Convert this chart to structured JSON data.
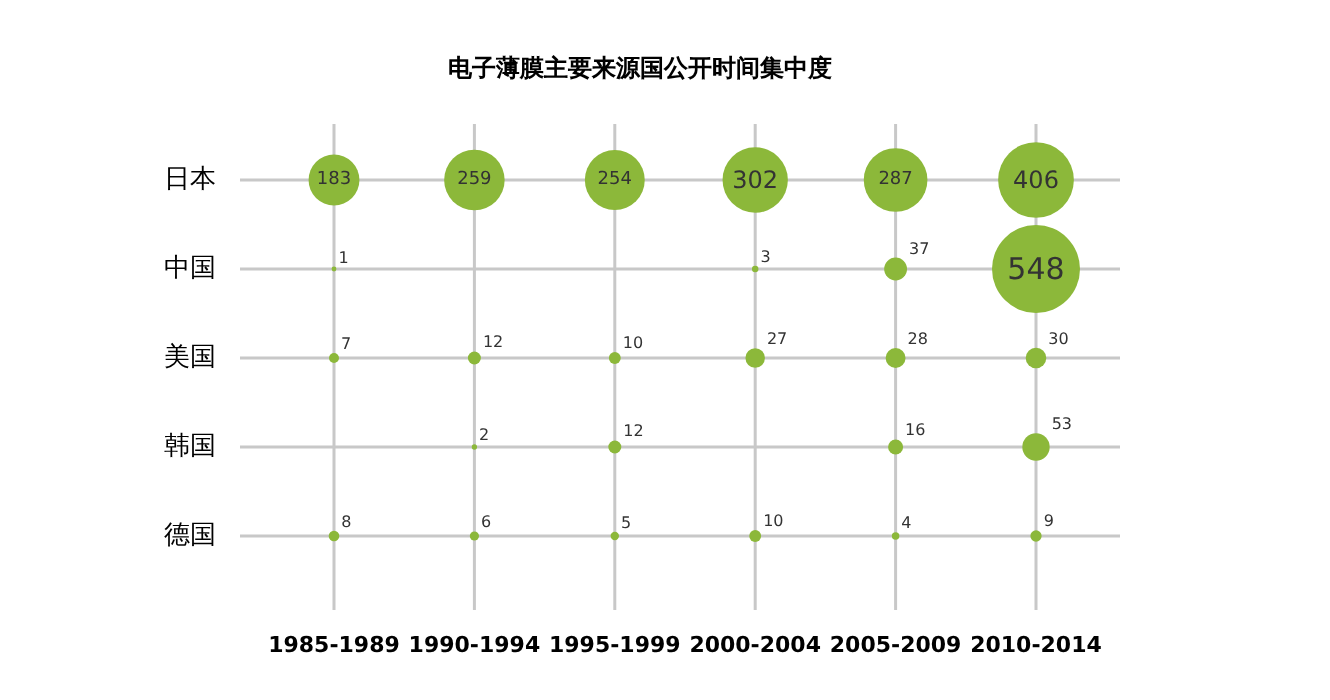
{
  "chart_data": {
    "type": "heatmap",
    "title": "电子薄膜主要来源国公开时间集中度",
    "categories": [
      "1985-1989",
      "1990-1994",
      "1995-1999",
      "2000-2004",
      "2005-2009",
      "2010-2014"
    ],
    "y_categories": [
      "日本",
      "中国",
      "美国",
      "韩国",
      "德国"
    ],
    "cells": [
      [
        183,
        259,
        254,
        302,
        287,
        406
      ],
      [
        1,
        null,
        null,
        3,
        37,
        548
      ],
      [
        7,
        12,
        10,
        27,
        28,
        30
      ],
      [
        null,
        2,
        12,
        null,
        16,
        53
      ],
      [
        8,
        6,
        5,
        10,
        4,
        9
      ]
    ],
    "data_labels": true,
    "grid": true
  }
}
